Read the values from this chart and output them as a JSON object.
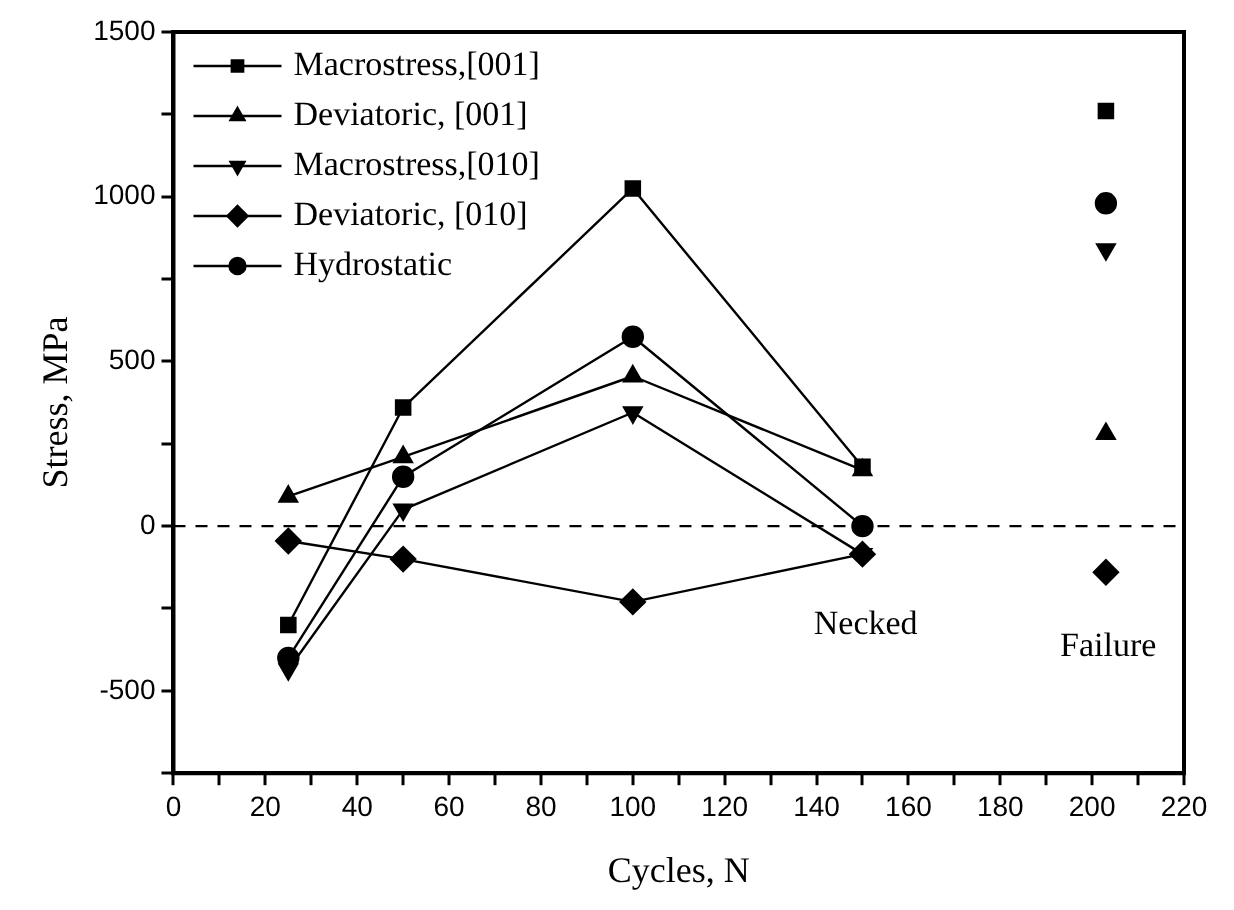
{
  "chart_data": {
    "type": "line",
    "xlabel": "Cycles, N",
    "ylabel": "Stress, MPa",
    "x": [
      25,
      50,
      100,
      150,
      203
    ],
    "series": [
      {
        "name": "Macrostress,[001]",
        "color": "#000000",
        "marker": "square",
        "values": [
          -300,
          360,
          1025,
          180,
          null
        ]
      },
      {
        "name": "Deviatoric, [001]",
        "color": "#000000",
        "marker": "triangle",
        "values": [
          90,
          210,
          455,
          170,
          null
        ]
      },
      {
        "name": "Macrostress,[010]",
        "color": "#000000",
        "marker": "triangle-down",
        "values": [
          -435,
          50,
          345,
          -85,
          null
        ]
      },
      {
        "name": "Deviatoric, [010]",
        "color": "#000000",
        "marker": "diamond",
        "values": [
          -45,
          -100,
          -230,
          -85,
          null
        ]
      },
      {
        "name": "Hydrostatic",
        "color": "#000000",
        "marker": "circle",
        "values": [
          -400,
          150,
          575,
          0,
          null
        ]
      },
      {
        "type": "scatter",
        "color": "#000000",
        "marker": "square",
        "values": [
          null,
          null,
          null,
          null,
          1260
        ]
      },
      {
        "type": "scatter",
        "color": "#000000",
        "marker": "triangle",
        "values": [
          null,
          null,
          null,
          null,
          280
        ]
      },
      {
        "type": "scatter",
        "color": "#000000",
        "marker": "triangle-down",
        "values": [
          null,
          null,
          null,
          null,
          840
        ]
      },
      {
        "type": "scatter",
        "color": "#000000",
        "marker": "diamond",
        "values": [
          null,
          null,
          null,
          null,
          -140
        ]
      },
      {
        "type": "scatter",
        "color": "#000000",
        "marker": "circle",
        "values": [
          null,
          null,
          null,
          null,
          980
        ]
      }
    ],
    "xlim": [
      0,
      220
    ],
    "xticks": [
      0,
      {
        "value": 10,
        "label": null
      },
      20,
      {
        "value": 30,
        "label": null
      },
      40,
      {
        "value": 50,
        "label": null
      },
      60,
      {
        "value": 70,
        "label": null
      },
      80,
      {
        "value": 90,
        "label": null
      },
      100,
      {
        "value": 110,
        "label": null
      },
      120,
      {
        "value": 130,
        "label": null
      },
      140,
      {
        "value": 150,
        "label": null
      },
      160,
      {
        "value": 170,
        "label": null
      },
      180,
      {
        "value": 190,
        "label": null
      },
      200,
      {
        "value": 210,
        "label": null
      },
      220
    ],
    "ylim": [
      -750,
      1500
    ],
    "yticks": [
      {
        "value": -750,
        "label": null
      },
      -500,
      {
        "value": -250,
        "label": null
      },
      0,
      {
        "value": 250,
        "label": null
      },
      500,
      {
        "value": 750,
        "label": null
      },
      1000,
      {
        "value": 1250,
        "label": null
      },
      1500
    ],
    "ref_lines": [
      {
        "axis": "y",
        "value": 0,
        "color": "#000000",
        "line_style": "dashed"
      }
    ],
    "annotations": [
      "Necked",
      "Failure"
    ],
    "legend": "top left",
    "grid": false,
    "line_style": "solid"
  }
}
